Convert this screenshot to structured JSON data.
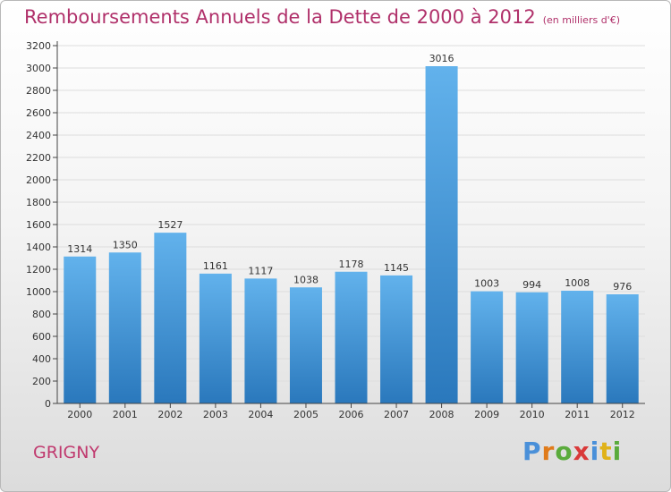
{
  "header": {
    "title": "Remboursements Annuels de la Dette de 2000 à 2012",
    "unit": "(en milliers d'€)"
  },
  "footer": {
    "city": "GRIGNY",
    "logo": {
      "letters": [
        "P",
        "r",
        "o",
        "x",
        "i",
        "t",
        "i"
      ],
      "colors": [
        "#4a90d9",
        "#e07b1a",
        "#5aab3c",
        "#d93a3a",
        "#4a90d9",
        "#e0b21a",
        "#5aab3c"
      ]
    }
  },
  "colors": {
    "bar_top": "#62b2ec",
    "bar_bottom": "#2a78bc",
    "title": "#b0306a",
    "grid": "#dddddd",
    "axis": "#444444"
  },
  "chart_data": {
    "type": "bar",
    "categories": [
      "2000",
      "2001",
      "2002",
      "2003",
      "2004",
      "2005",
      "2006",
      "2007",
      "2008",
      "2009",
      "2010",
      "2011",
      "2012"
    ],
    "values": [
      1314,
      1350,
      1527,
      1161,
      1117,
      1038,
      1178,
      1145,
      3016,
      1003,
      994,
      1008,
      976
    ],
    "title": "Remboursements Annuels de la Dette de 2000 à 2012",
    "subtitle": "(en milliers d'€)",
    "xlabel": "",
    "ylabel": "",
    "ylim": [
      0,
      3200
    ],
    "yticks": [
      0,
      200,
      400,
      600,
      800,
      1000,
      1200,
      1400,
      1600,
      1800,
      2000,
      2200,
      2400,
      2600,
      2800,
      3000,
      3200
    ],
    "grid": true,
    "data_labels": true
  }
}
